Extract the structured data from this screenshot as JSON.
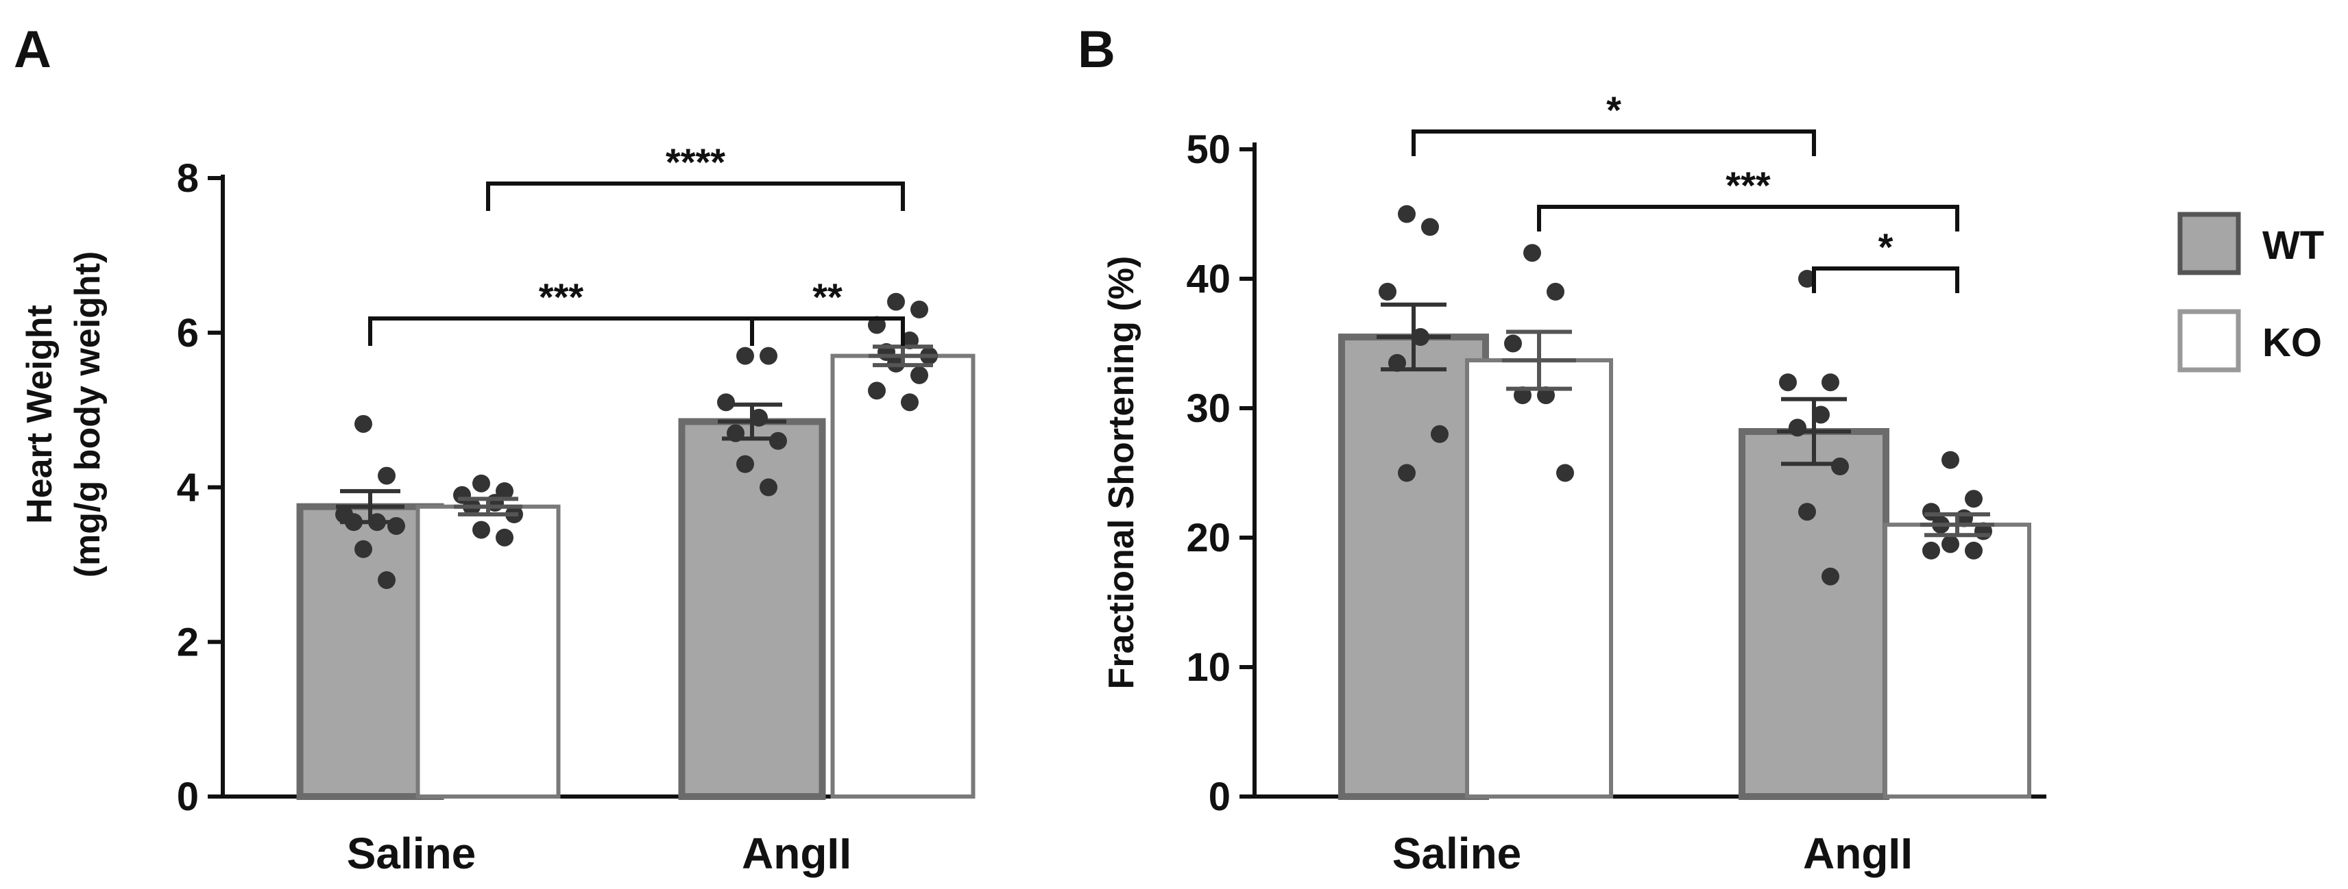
{
  "colors": {
    "wt_fill": "#a6a6a6",
    "wt_edge": "#6b6b6b",
    "ko_fill": "#ffffff",
    "ko_edge": "#7a7a7a",
    "dots": "#333333",
    "ink": "#111111"
  },
  "legend": [
    {
      "label": "WT",
      "fill": "#a6a6a6",
      "edge": "#555555"
    },
    {
      "label": "KO",
      "fill": "#ffffff",
      "edge": "#999999"
    }
  ],
  "chart_data": [
    {
      "panel": "A",
      "type": "bar",
      "categories": [
        "Saline",
        "AngII"
      ],
      "ylabel_lines": [
        "Heart Weight",
        "(mg/g body weight)"
      ],
      "ylim": [
        0,
        8
      ],
      "yticks": [
        "0",
        "2",
        "4",
        "6",
        "8"
      ],
      "series": [
        {
          "name": "WT",
          "values": [
            3.75,
            4.85
          ],
          "sem": [
            0.2,
            0.22
          ],
          "points": [
            [
              4.82,
              4.15,
              3.65,
              3.55,
              3.55,
              3.5,
              3.2,
              2.8
            ],
            [
              5.7,
              5.7,
              5.1,
              4.9,
              4.7,
              4.6,
              4.3,
              4.0
            ]
          ]
        },
        {
          "name": "KO",
          "values": [
            3.75,
            5.7
          ],
          "sem": [
            0.1,
            0.12
          ],
          "points": [
            [
              4.05,
              3.95,
              3.9,
              3.8,
              3.75,
              3.65,
              3.45,
              3.35
            ],
            [
              6.4,
              6.3,
              6.1,
              5.9,
              5.75,
              5.7,
              5.6,
              5.45,
              5.25,
              5.1
            ]
          ]
        }
      ],
      "comparisons": [
        {
          "label": "****",
          "from": [
            0,
            1
          ],
          "to": [
            1,
            1
          ],
          "level": 0
        },
        {
          "label": "***",
          "from": [
            0,
            0
          ],
          "to": [
            1,
            0
          ],
          "level": 1
        },
        {
          "label": "**",
          "from": [
            1,
            0
          ],
          "to": [
            1,
            1
          ],
          "level": 1
        }
      ]
    },
    {
      "panel": "B",
      "type": "bar",
      "categories": [
        "Saline",
        "AngII"
      ],
      "ylabel_lines": [
        "Fractional Shortening (%)"
      ],
      "ylim": [
        0,
        50
      ],
      "yticks": [
        "0",
        "10",
        "20",
        "30",
        "40",
        "50"
      ],
      "series": [
        {
          "name": "WT",
          "values": [
            35.5,
            28.2
          ],
          "sem": [
            2.5,
            2.5
          ],
          "points": [
            [
              45,
              44,
              39,
              35.5,
              33.5,
              28,
              25
            ],
            [
              40,
              32,
              32,
              29.5,
              28.5,
              25.5,
              22,
              17
            ]
          ]
        },
        {
          "name": "KO",
          "values": [
            33.7,
            21.0
          ],
          "sem": [
            2.2,
            0.8
          ],
          "points": [
            [
              42,
              39,
              35,
              31,
              31,
              25
            ],
            [
              26,
              23,
              22,
              21.5,
              21,
              20.5,
              19.5,
              19,
              19
            ]
          ]
        }
      ],
      "comparisons": [
        {
          "label": "*",
          "from": [
            0,
            0
          ],
          "to": [
            1,
            0
          ],
          "level": 0
        },
        {
          "label": "***",
          "from": [
            0,
            1
          ],
          "to": [
            1,
            1
          ],
          "level": 1
        },
        {
          "label": "*",
          "from": [
            1,
            0
          ],
          "to": [
            1,
            1
          ],
          "level": 2
        }
      ]
    }
  ]
}
